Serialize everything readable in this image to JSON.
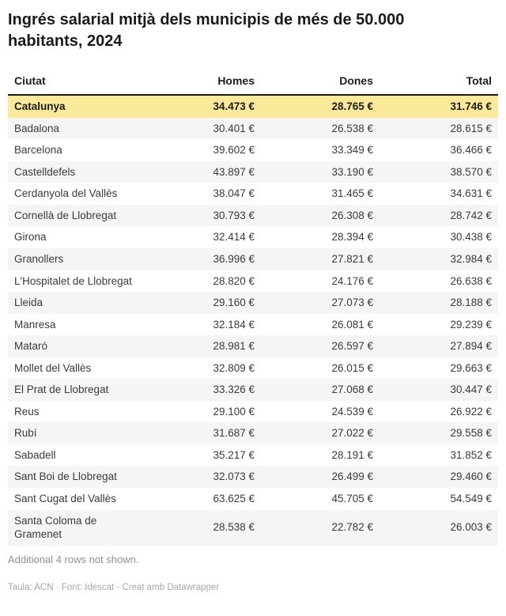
{
  "chart_data": {
    "type": "table",
    "title": "Ingrés salarial mitjà dels municipis de més de 50.000 habitants, 2024",
    "columns": [
      "Ciutat",
      "Homes",
      "Dones",
      "Total"
    ],
    "highlighted_row": "Catalunya",
    "rows": [
      {
        "city": "Catalunya",
        "homes": "34.473 €",
        "dones": "28.765 €",
        "total": "31.746 €",
        "highlight": true
      },
      {
        "city": "Badalona",
        "homes": "30.401 €",
        "dones": "26.538 €",
        "total": "28.615 €",
        "highlight": false
      },
      {
        "city": "Barcelona",
        "homes": "39.602 €",
        "dones": "33.349 €",
        "total": "36.466 €",
        "highlight": false
      },
      {
        "city": "Castelldefels",
        "homes": "43.897 €",
        "dones": "33.190 €",
        "total": "38.570 €",
        "highlight": false
      },
      {
        "city": "Cerdanyola del Vallès",
        "homes": "38.047 €",
        "dones": "31.465 €",
        "total": "34.631 €",
        "highlight": false
      },
      {
        "city": "Cornellà de Llobregat",
        "homes": "30.793 €",
        "dones": "26.308 €",
        "total": "28.742 €",
        "highlight": false
      },
      {
        "city": "Girona",
        "homes": "32.414 €",
        "dones": "28.394 €",
        "total": "30.438 €",
        "highlight": false
      },
      {
        "city": "Granollers",
        "homes": "36.996 €",
        "dones": "27.821 €",
        "total": "32.984 €",
        "highlight": false
      },
      {
        "city": "L'Hospitalet de Llobregat",
        "homes": "28.820 €",
        "dones": "24.176 €",
        "total": "26.638 €",
        "highlight": false
      },
      {
        "city": "Lleida",
        "homes": "29.160 €",
        "dones": "27.073 €",
        "total": "28.188 €",
        "highlight": false
      },
      {
        "city": "Manresa",
        "homes": "32.184 €",
        "dones": "26.081 €",
        "total": "29.239 €",
        "highlight": false
      },
      {
        "city": "Mataró",
        "homes": "28.981 €",
        "dones": "26.597 €",
        "total": "27.894 €",
        "highlight": false
      },
      {
        "city": "Mollet del Vallès",
        "homes": "32.809 €",
        "dones": "26.015 €",
        "total": "29.663 €",
        "highlight": false
      },
      {
        "city": "El Prat de Llobregat",
        "homes": "33.326 €",
        "dones": "27.068 €",
        "total": "30.447 €",
        "highlight": false
      },
      {
        "city": "Reus",
        "homes": "29.100 €",
        "dones": "24.539 €",
        "total": "26.922 €",
        "highlight": false
      },
      {
        "city": "Rubí",
        "homes": "31.687 €",
        "dones": "27.022 €",
        "total": "29.558 €",
        "highlight": false
      },
      {
        "city": "Sabadell",
        "homes": "35.217 €",
        "dones": "28.191 €",
        "total": "31.852 €",
        "highlight": false
      },
      {
        "city": "Sant Boi de Llobregat",
        "homes": "32.073 €",
        "dones": "26.499 €",
        "total": "29.460 €",
        "highlight": false
      },
      {
        "city": "Sant Cugat del Vallès",
        "homes": "63.625 €",
        "dones": "45.705 €",
        "total": "54.549 €",
        "highlight": false
      },
      {
        "city": "Santa Coloma de Gramenet",
        "homes": "28.538 €",
        "dones": "22.782 €",
        "total": "26.003 €",
        "highlight": false
      }
    ]
  },
  "footer": {
    "note": "Additional 4 rows not shown.",
    "credit": "Taula: ACN · Font: Idescat · Creat amb Datawrapper"
  },
  "colors": {
    "highlight_row_bg": "#fcea9b",
    "stripe_row_bg": "#f6f5f3",
    "header_border": "#1a1a1a"
  }
}
